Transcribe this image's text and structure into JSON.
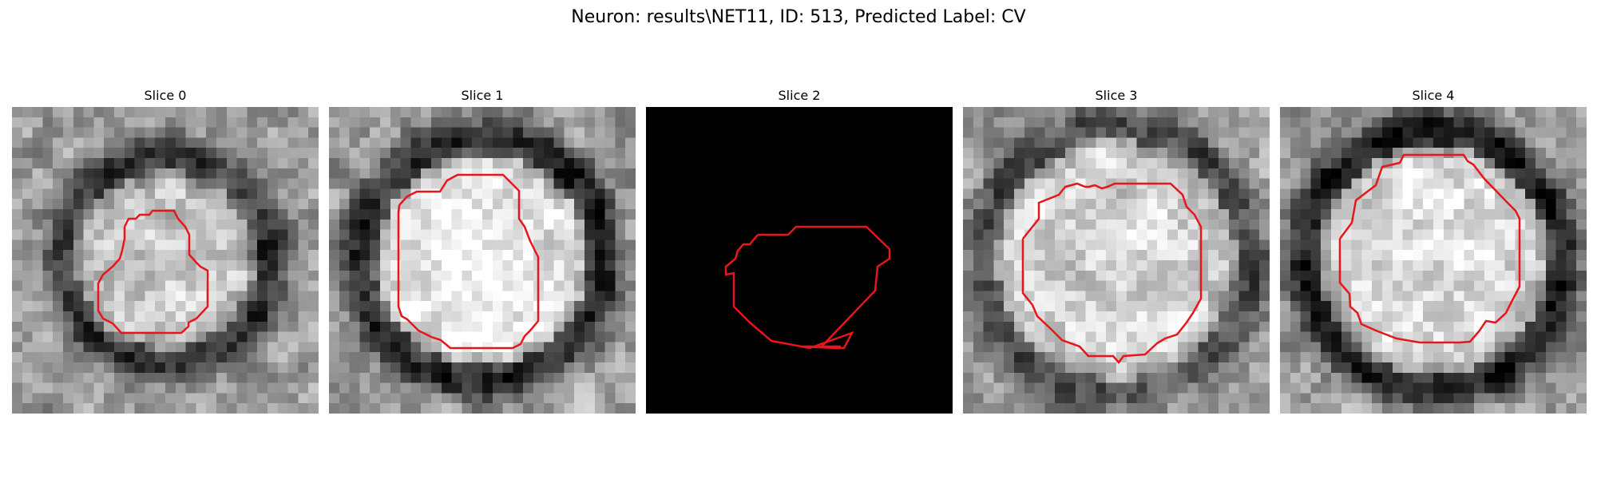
{
  "figure": {
    "suptitle": "Neuron: results\\NET11, ID: 513, Predicted Label: CV"
  },
  "colors": {
    "contour": "#e8151b",
    "background": "#ffffff",
    "blank_slice": "#000000"
  },
  "slices": [
    {
      "title": "Slice 0",
      "image": "grayscale",
      "ring_radius": 0.34,
      "ring_darkness": 0.45,
      "center_brightness": 0.15,
      "seed": 11
    },
    {
      "title": "Slice 1",
      "image": "grayscale",
      "ring_radius": 0.4,
      "ring_darkness": 0.5,
      "center_brightness": 0.3,
      "seed": 23
    },
    {
      "title": "Slice 2",
      "image": "blank"
    },
    {
      "title": "Slice 3",
      "image": "grayscale",
      "ring_radius": 0.44,
      "ring_darkness": 0.35,
      "center_brightness": 0.2,
      "seed": 37
    },
    {
      "title": "Slice 4",
      "image": "grayscale",
      "ring_radius": 0.42,
      "ring_darkness": 0.55,
      "center_brightness": 0.25,
      "seed": 53
    }
  ]
}
